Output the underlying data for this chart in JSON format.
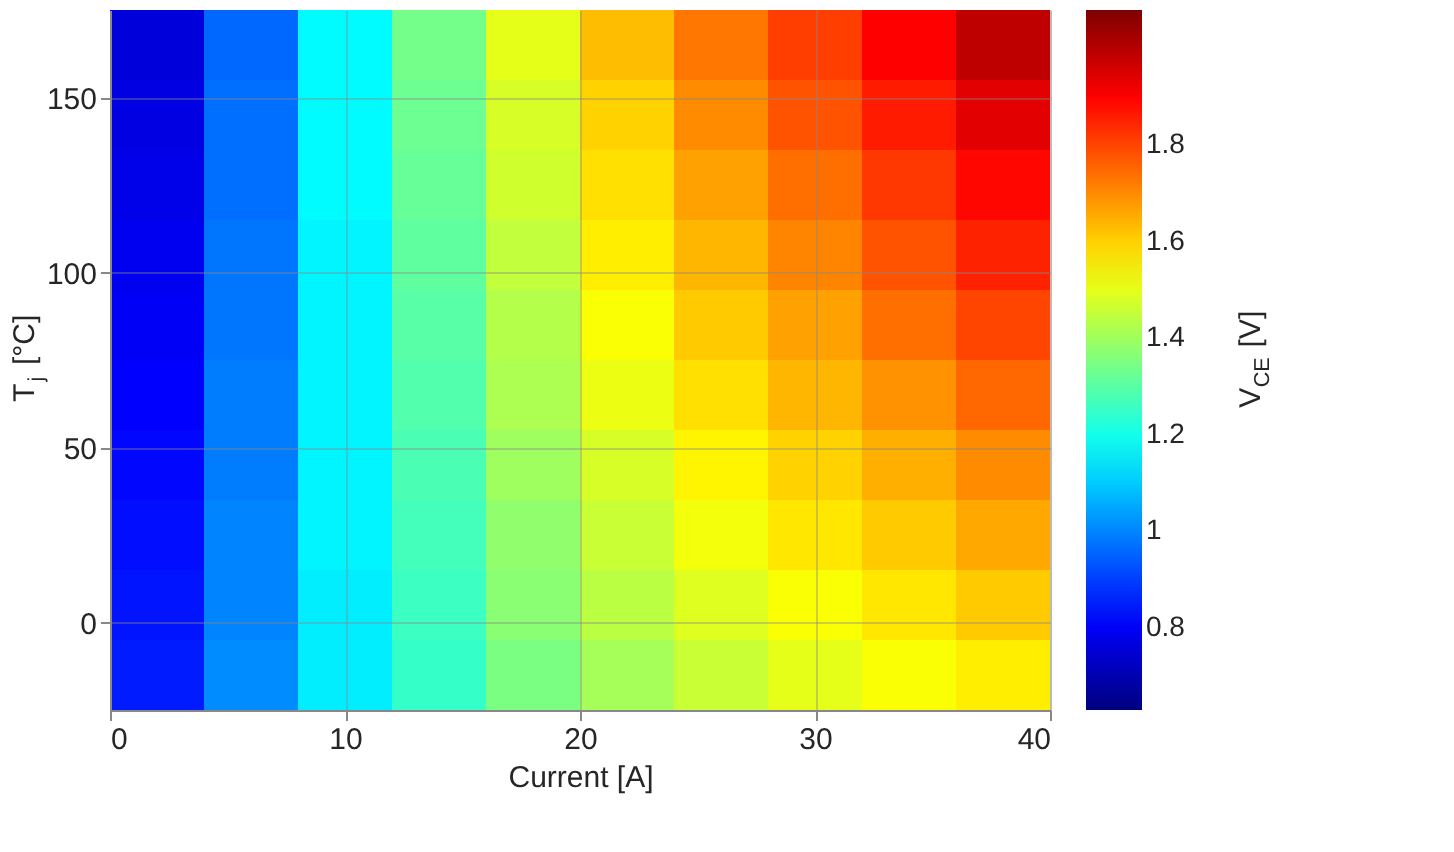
{
  "chart_data": {
    "type": "heatmap",
    "xlabel": "Current [A]",
    "ylabel": "T$_{j}$ [°C]",
    "clabel": "V$_{CE}$ [V]",
    "x": [
      2,
      6,
      10,
      14,
      18,
      22,
      26,
      30,
      34,
      38
    ],
    "y": [
      165,
      145,
      125,
      105,
      85,
      65,
      45,
      25,
      5,
      -15
    ],
    "cells": [
      [
        0.76,
        0.96,
        1.17,
        1.34,
        1.5,
        1.63,
        1.73,
        1.81,
        1.9,
        1.99
      ],
      [
        0.77,
        0.97,
        1.17,
        1.33,
        1.48,
        1.6,
        1.7,
        1.78,
        1.86,
        1.94
      ],
      [
        0.78,
        0.97,
        1.17,
        1.32,
        1.47,
        1.58,
        1.67,
        1.74,
        1.82,
        1.89
      ],
      [
        0.79,
        0.98,
        1.16,
        1.31,
        1.45,
        1.56,
        1.64,
        1.71,
        1.78,
        1.85
      ],
      [
        0.8,
        0.98,
        1.16,
        1.3,
        1.43,
        1.53,
        1.61,
        1.67,
        1.74,
        1.8
      ],
      [
        0.81,
        0.99,
        1.16,
        1.29,
        1.42,
        1.51,
        1.58,
        1.64,
        1.69,
        1.75
      ],
      [
        0.82,
        0.99,
        1.16,
        1.28,
        1.4,
        1.48,
        1.55,
        1.6,
        1.65,
        1.7
      ],
      [
        0.83,
        1.0,
        1.16,
        1.27,
        1.38,
        1.46,
        1.52,
        1.57,
        1.61,
        1.66
      ],
      [
        0.84,
        1.0,
        1.15,
        1.26,
        1.37,
        1.44,
        1.49,
        1.53,
        1.57,
        1.61
      ],
      [
        0.85,
        1.01,
        1.15,
        1.25,
        1.35,
        1.41,
        1.46,
        1.5,
        1.53,
        1.56
      ]
    ],
    "xlim": [
      0,
      40
    ],
    "xticks": [
      0,
      10,
      20,
      30,
      40
    ],
    "ylim": [
      -25,
      175
    ],
    "yticks": [
      0,
      50,
      100,
      150
    ],
    "clim": [
      0.63,
      2.08
    ],
    "cticks": [
      0.8,
      1,
      1.2,
      1.4,
      1.6,
      1.8
    ],
    "grid": true
  }
}
